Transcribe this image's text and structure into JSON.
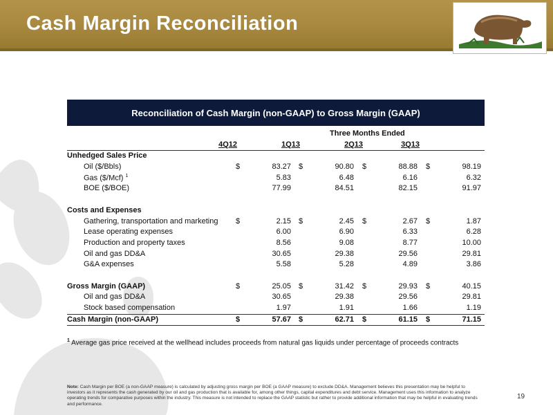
{
  "slide": {
    "title": "Cash Margin Reconciliation",
    "page_number": "19"
  },
  "table": {
    "title": "Reconciliation of Cash Margin (non-GAAP) to Gross Margin (GAAP)",
    "period_header": "Three Months Ended",
    "columns": [
      "4Q12",
      "1Q13",
      "2Q13",
      "3Q13"
    ],
    "currency_symbol": "$",
    "section_prices": "Unhedged Sales Price",
    "oil_label": "Oil ($/Bbls)",
    "oil": [
      "83.27",
      "90.80",
      "88.88",
      "98.19"
    ],
    "gas_label": "Gas ($/Mcf)",
    "gas_fn": "1",
    "gas": [
      "5.83",
      "6.48",
      "6.16",
      "6.32"
    ],
    "boe_label": "BOE ($/BOE)",
    "boe": [
      "77.99",
      "84.51",
      "82.15",
      "91.97"
    ],
    "section_costs": "Costs and Expenses",
    "gathering_label": "Gathering, transportation and marketing",
    "gathering": [
      "2.15",
      "2.45",
      "2.67",
      "1.87"
    ],
    "loe_label": "Lease operating expenses",
    "loe": [
      "6.00",
      "6.90",
      "6.33",
      "6.28"
    ],
    "prod_tax_label": "Production and property taxes",
    "prod_tax": [
      "8.56",
      "9.08",
      "8.77",
      "10.00"
    ],
    "dda_label": "Oil and gas DD&A",
    "dda": [
      "30.65",
      "29.38",
      "29.56",
      "29.81"
    ],
    "ga_label": "G&A expenses",
    "ga": [
      "5.58",
      "5.28",
      "4.89",
      "3.86"
    ],
    "gross_label": "Gross Margin (GAAP)",
    "gross": [
      "25.05",
      "31.42",
      "29.93",
      "40.15"
    ],
    "dda2_label": "Oil and gas DD&A",
    "dda2": [
      "30.65",
      "29.38",
      "29.56",
      "29.81"
    ],
    "stock_label": "Stock based compensation",
    "stock": [
      "1.97",
      "1.91",
      "1.66",
      "1.19"
    ],
    "cash_label": "Cash Margin (non-GAAP)",
    "cash": [
      "57.67",
      "62.71",
      "61.15",
      "71.15"
    ]
  },
  "footnote": {
    "marker": "1",
    "text": "Average gas price received at the wellhead includes proceeds from natural gas liquids under percentage of proceeds contracts"
  },
  "note": {
    "label": "Note:",
    "text": "Cash Margin per BOE (a non-GAAP measure) is calculated by adjusting gross margin per BOE (a GAAP measure) to exclude DD&A. Management believes this presentation may be helpful to investors as it represents the cash generated by our oil and gas production that is available for, among other things, capital expenditures and debt service. Management uses this information to analyze operating trends for comparative purposes within the industry. This measure is not intended to replace the GAAP statistic but rather to provide additional information that may be helpful in evaluating trends and performance."
  },
  "colors": {
    "header_gold": "#a98a40",
    "table_header_navy": "#0e1a3a",
    "watermark_gray": "#e6e6e6"
  },
  "icons": [
    "bear-logo",
    "paw-print-watermark"
  ]
}
